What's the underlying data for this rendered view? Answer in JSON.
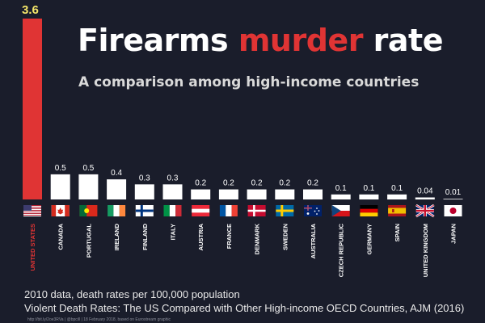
{
  "header": {
    "title_part1": "Firearms ",
    "title_accent": "murder",
    "title_part2": " rate",
    "subtitle": "A comparison among high-income countries"
  },
  "notes": {
    "line1": "2010 data, death rates per 100,000 population",
    "line2": "Violent Death Rates: The US Compared with Other High-income OECD Countries, AJM (2016)",
    "source": "http://bit.ly/2oe3RVa  |  @bpcill  |  18 February 2018, based on Eurostream graphic"
  },
  "colors": {
    "background": "#1a1d2b",
    "highlight": "#e03434",
    "bar": "#ffffff",
    "highlight_label": "#f5e66a",
    "label": "#ffffff"
  },
  "chart_data": {
    "type": "bar",
    "title": "Firearms murder rate",
    "subtitle": "A comparison among high-income countries",
    "xlabel": "",
    "ylabel": "",
    "categories": [
      "UNITED STATES",
      "CANADA",
      "PORTUGAL",
      "IRELAND",
      "FINLAND",
      "ITALY",
      "AUSTRIA",
      "FRANCE",
      "DENMARK",
      "SWEDEN",
      "AUSTRALIA",
      "CZECH REPUBLIC",
      "GERMANY",
      "SPAIN",
      "UNITED KINGDOM",
      "JAPAN"
    ],
    "values": [
      3.6,
      0.5,
      0.5,
      0.4,
      0.3,
      0.3,
      0.2,
      0.2,
      0.2,
      0.2,
      0.2,
      0.1,
      0.1,
      0.1,
      0.04,
      0.01
    ],
    "value_labels": [
      "3.6",
      "0.5",
      "0.5",
      "0.4",
      "0.3",
      "0.3",
      "0.2",
      "0.2",
      "0.2",
      "0.2",
      "0.2",
      "0.1",
      "0.1",
      "0.1",
      "0.04",
      "0.01"
    ],
    "flags": [
      "us-flag-icon",
      "canada-flag-icon",
      "portugal-flag-icon",
      "ireland-flag-icon",
      "finland-flag-icon",
      "italy-flag-icon",
      "austria-flag-icon",
      "france-flag-icon",
      "denmark-flag-icon",
      "sweden-flag-icon",
      "australia-flag-icon",
      "czech-flag-icon",
      "germany-flag-icon",
      "spain-flag-icon",
      "uk-flag-icon",
      "japan-flag-icon"
    ],
    "highlight_index": 0,
    "ylim": [
      0,
      3.6
    ],
    "grid": false,
    "legend": "none"
  }
}
